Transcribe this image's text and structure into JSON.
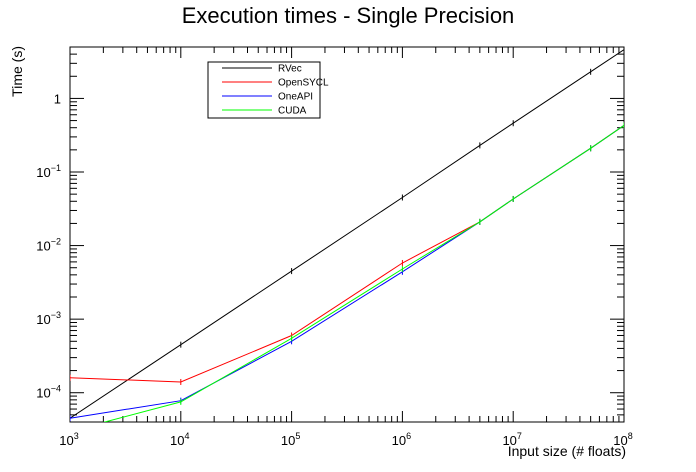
{
  "chart_data": {
    "type": "line",
    "title": "Execution times - Single Precision",
    "xlabel": "Input size (# floats)",
    "ylabel": "Time (s)",
    "xscale": "log",
    "yscale": "log",
    "xlim": [
      1000,
      100000000
    ],
    "ylim": [
      4e-05,
      5
    ],
    "x_ticks": [
      {
        "base": "10",
        "exp": "3",
        "value": 1000
      },
      {
        "base": "10",
        "exp": "4",
        "value": 10000
      },
      {
        "base": "10",
        "exp": "5",
        "value": 100000
      },
      {
        "base": "10",
        "exp": "6",
        "value": 1000000
      },
      {
        "base": "10",
        "exp": "7",
        "value": 10000000
      },
      {
        "base": "10",
        "exp": "8",
        "value": 100000000
      }
    ],
    "y_ticks": [
      {
        "base": "10",
        "exp": "−4",
        "value": 0.0001
      },
      {
        "base": "10",
        "exp": "−3",
        "value": 0.001
      },
      {
        "base": "10",
        "exp": "−2",
        "value": 0.01
      },
      {
        "base": "10",
        "exp": "−1",
        "value": 0.1
      },
      {
        "base": "1",
        "exp": "",
        "value": 1
      }
    ],
    "legend_position": "top-center",
    "series": [
      {
        "name": "RVec",
        "color": "#000000",
        "x": [
          1000,
          10000,
          100000,
          1000000,
          5000000,
          10000000,
          50000000,
          100000000
        ],
        "y": [
          4.5e-05,
          0.00045,
          0.0045,
          0.045,
          0.23,
          0.46,
          2.3,
          4.6
        ]
      },
      {
        "name": "OpenSYCL",
        "color": "#ff0000",
        "x": [
          1000,
          10000,
          100000,
          1000000,
          5000000,
          10000000,
          50000000,
          100000000
        ],
        "y": [
          0.00016,
          0.00014,
          0.0006,
          0.0058,
          0.021,
          0.043,
          0.21,
          0.43
        ]
      },
      {
        "name": "OneAPI",
        "color": "#0000ff",
        "x": [
          1000,
          10000,
          100000,
          1000000,
          5000000,
          10000000,
          50000000,
          100000000
        ],
        "y": [
          4.5e-05,
          7.8e-05,
          0.0005,
          0.0044,
          0.021,
          0.043,
          0.21,
          0.43
        ]
      },
      {
        "name": "CUDA",
        "color": "#00ff00",
        "x": [
          1000,
          10000,
          100000,
          1000000,
          5000000,
          10000000,
          50000000,
          100000000
        ],
        "y": [
          3e-05,
          7.5e-05,
          0.00055,
          0.0048,
          0.021,
          0.043,
          0.21,
          0.43
        ]
      }
    ]
  }
}
